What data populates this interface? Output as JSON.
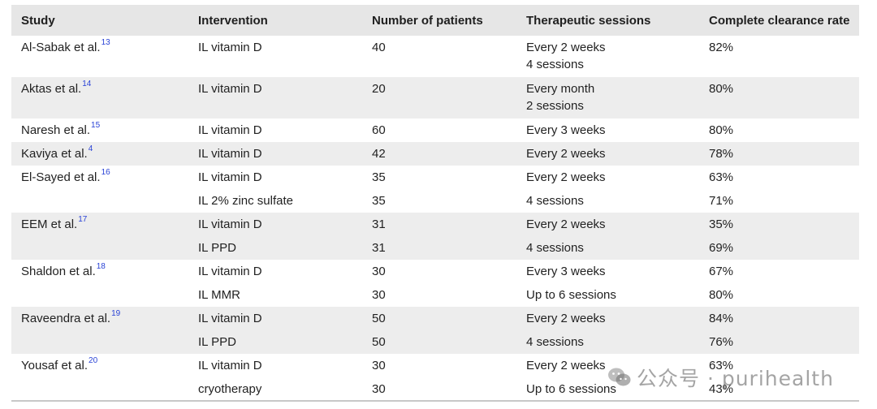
{
  "headers": [
    "Study",
    "Intervention",
    "Number of patients",
    "Therapeutic sessions",
    "Complete clearance rate"
  ],
  "groups": [
    {
      "study": "Al-Sabak et al.",
      "ref": "13",
      "rows": [
        {
          "intervention": "IL vitamin D",
          "patients": "40",
          "sessions": [
            "Every 2 weeks",
            "4 sessions"
          ],
          "rate": "82%"
        }
      ]
    },
    {
      "study": "Aktas et al.",
      "ref": "14",
      "rows": [
        {
          "intervention": "IL vitamin D",
          "patients": "20",
          "sessions": [
            "Every month",
            "2 sessions"
          ],
          "rate": "80%"
        }
      ]
    },
    {
      "study": "Naresh et al.",
      "ref": "15",
      "rows": [
        {
          "intervention": "IL vitamin D",
          "patients": "60",
          "sessions": [
            "Every 3 weeks"
          ],
          "rate": "80%"
        }
      ]
    },
    {
      "study": "Kaviya et al.",
      "ref": "4",
      "rows": [
        {
          "intervention": "IL vitamin D",
          "patients": "42",
          "sessions": [
            "Every 2 weeks"
          ],
          "rate": "78%"
        }
      ]
    },
    {
      "study": "El-Sayed et al.",
      "ref": "16",
      "rows": [
        {
          "intervention": "IL vitamin D",
          "patients": "35",
          "sessions": [
            "Every 2 weeks"
          ],
          "rate": "63%"
        },
        {
          "intervention": "IL 2% zinc sulfate",
          "patients": "35",
          "sessions": [
            "4 sessions"
          ],
          "rate": "71%"
        }
      ]
    },
    {
      "study": "EEM et al.",
      "ref": "17",
      "rows": [
        {
          "intervention": "IL vitamin D",
          "patients": "31",
          "sessions": [
            "Every 2 weeks"
          ],
          "rate": "35%"
        },
        {
          "intervention": "IL PPD",
          "patients": "31",
          "sessions": [
            "4 sessions"
          ],
          "rate": "69%"
        }
      ]
    },
    {
      "study": "Shaldon et al.",
      "ref": "18",
      "rows": [
        {
          "intervention": "IL vitamin D",
          "patients": "30",
          "sessions": [
            "Every 3 weeks"
          ],
          "rate": "67%"
        },
        {
          "intervention": "IL MMR",
          "patients": "30",
          "sessions": [
            "Up to 6 sessions"
          ],
          "rate": "80%"
        }
      ]
    },
    {
      "study": "Raveendra et al.",
      "ref": "19",
      "rows": [
        {
          "intervention": "IL vitamin D",
          "patients": "50",
          "sessions": [
            "Every 2 weeks"
          ],
          "rate": "84%"
        },
        {
          "intervention": "IL PPD",
          "patients": "50",
          "sessions": [
            "4 sessions"
          ],
          "rate": "76%"
        }
      ]
    },
    {
      "study": "Yousaf et al.",
      "ref": "20",
      "rows": [
        {
          "intervention": "IL vitamin D",
          "patients": "30",
          "sessions": [
            "Every 2 weeks"
          ],
          "rate": "63%"
        },
        {
          "intervention": "cryotherapy",
          "patients": "30",
          "sessions": [
            "Up to 6 sessions"
          ],
          "rate": "43%"
        }
      ]
    }
  ],
  "colors": {
    "header_bg": "#e6e6e6",
    "shaded_row_bg": "#ededed",
    "reference_link": "#2a43d6"
  },
  "watermark": {
    "icon": "wechat-icon",
    "text": "公众号 · purihealth"
  }
}
